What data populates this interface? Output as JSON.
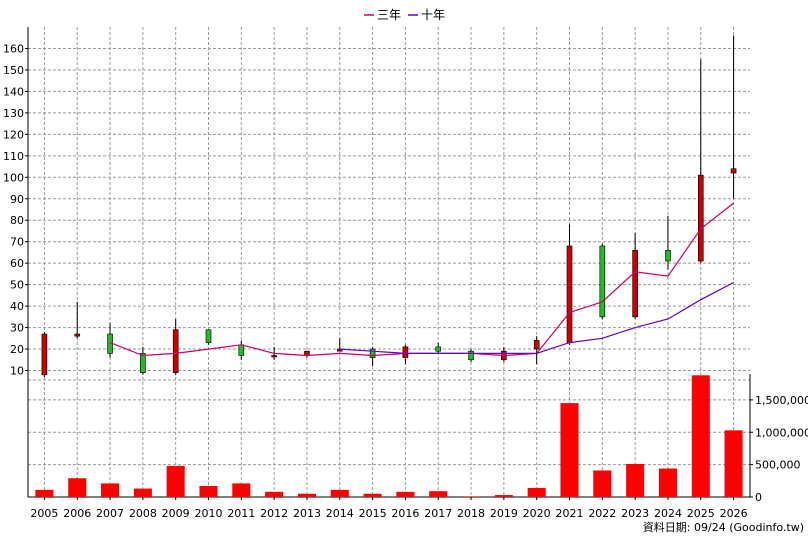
{
  "legend": [
    {
      "name": "三年",
      "color": "#cc0066"
    },
    {
      "name": "十年",
      "color": "#6600cc"
    }
  ],
  "footer": "資料日期: 09/24  (Goodinfo.tw)",
  "colors": {
    "up": "#cc0000",
    "down": "#22bb22",
    "volume": "#ff0000",
    "grid": "#999999"
  },
  "chart_data": [
    {
      "type": "candlestick",
      "x": [
        "2005",
        "2006",
        "2007",
        "2008",
        "2009",
        "2010",
        "2011",
        "2012",
        "2013",
        "2014",
        "2015",
        "2016",
        "2017",
        "2018",
        "2019",
        "2020",
        "2021",
        "2022",
        "2023",
        "2024",
        "2025",
        "2026"
      ],
      "candles": [
        {
          "open": 8,
          "high": 28,
          "low": 7,
          "close": 27
        },
        {
          "open": 26,
          "high": 42,
          "low": 25,
          "close": 27
        },
        {
          "open": 27,
          "high": 32,
          "low": 16,
          "close": 18
        },
        {
          "open": 18,
          "high": 21,
          "low": 8,
          "close": 9
        },
        {
          "open": 9,
          "high": 34,
          "low": 8,
          "close": 29
        },
        {
          "open": 29,
          "high": 29,
          "low": 22,
          "close": 23
        },
        {
          "open": 22,
          "high": 24,
          "low": 15,
          "close": 17
        },
        {
          "open": 17,
          "high": 21,
          "low": 15,
          "close": 17
        },
        {
          "open": 17,
          "high": 19,
          "low": 16,
          "close": 19
        },
        {
          "open": 19,
          "high": 25,
          "low": 19,
          "close": 20
        },
        {
          "open": 20,
          "high": 21,
          "low": 12,
          "close": 16
        },
        {
          "open": 16,
          "high": 22,
          "low": 13,
          "close": 21
        },
        {
          "open": 21,
          "high": 23,
          "low": 18,
          "close": 19
        },
        {
          "open": 19,
          "high": 20,
          "low": 14,
          "close": 15
        },
        {
          "open": 15,
          "high": 21,
          "low": 14,
          "close": 19
        },
        {
          "open": 20,
          "high": 26,
          "low": 13,
          "close": 24
        },
        {
          "open": 23,
          "high": 78,
          "low": 22,
          "close": 68
        },
        {
          "open": 68,
          "high": 69,
          "low": 34,
          "close": 35
        },
        {
          "open": 35,
          "high": 74,
          "low": 34,
          "close": 66
        },
        {
          "open": 66,
          "high": 82,
          "low": 57,
          "close": 61
        },
        {
          "open": 61,
          "high": 155,
          "low": 60,
          "close": 101
        },
        {
          "open": 102,
          "high": 166,
          "low": 90,
          "close": 104
        }
      ],
      "ma_series": [
        {
          "name": "三年",
          "values": [
            null,
            null,
            23,
            17,
            18,
            20,
            22,
            18,
            17,
            18,
            17,
            18,
            18,
            18,
            17,
            18,
            37,
            42,
            56,
            54,
            76,
            88
          ]
        },
        {
          "name": "十年",
          "values": [
            null,
            null,
            null,
            null,
            null,
            null,
            null,
            null,
            null,
            null,
            null,
            null,
            null,
            null,
            null,
            null,
            null,
            null,
            null,
            null,
            null,
            null
          ]
        }
      ],
      "ten_year_values": [
        null,
        null,
        null,
        null,
        null,
        null,
        null,
        null,
        null,
        20,
        19,
        18,
        18,
        18,
        18,
        18,
        23,
        25,
        30,
        34,
        43,
        51
      ],
      "ylim": [
        0,
        170
      ],
      "yticks": [
        10,
        20,
        30,
        40,
        50,
        60,
        70,
        80,
        90,
        100,
        110,
        120,
        130,
        140,
        150,
        160
      ],
      "grid": true,
      "legend_position": "top-center"
    },
    {
      "type": "bar",
      "categories": [
        "2005",
        "2006",
        "2007",
        "2008",
        "2009",
        "2010",
        "2011",
        "2012",
        "2013",
        "2014",
        "2015",
        "2016",
        "2017",
        "2018",
        "2019",
        "2020",
        "2021",
        "2022",
        "2023",
        "2024",
        "2025",
        "2026"
      ],
      "values": [
        110000,
        290000,
        210000,
        130000,
        480000,
        170000,
        210000,
        80000,
        50000,
        110000,
        50000,
        80000,
        90000,
        10000,
        30000,
        140000,
        1450000,
        410000,
        510000,
        440000,
        1880000,
        1030000
      ],
      "ylim": [
        0,
        1900000
      ],
      "yticks": [
        0,
        500000,
        1000000,
        1500000
      ],
      "ytick_labels": [
        "0",
        "500,000",
        "1,000,000",
        "1,500,000"
      ],
      "grid": true
    }
  ]
}
